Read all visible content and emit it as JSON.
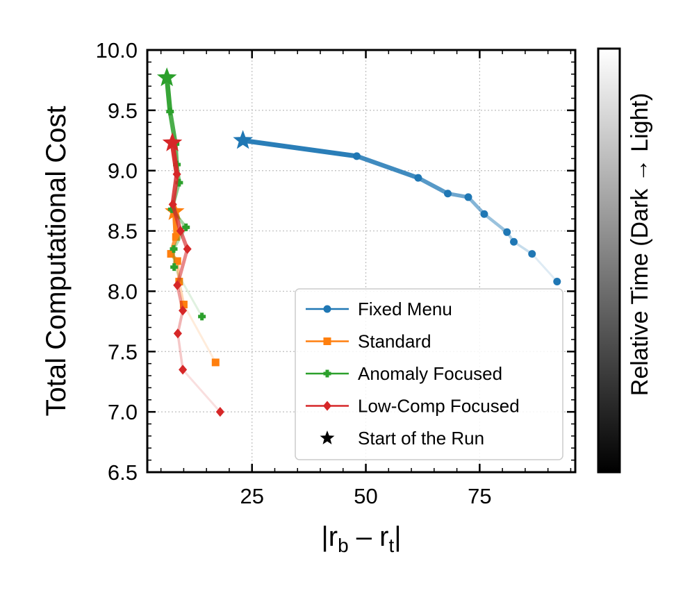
{
  "chart_data": {
    "type": "line",
    "xlabel": "|r_b – r_t|",
    "xlabel_parts": {
      "open": "|r",
      "sub1": "b",
      "mid": " – r",
      "sub2": "t",
      "close": "|"
    },
    "ylabel": "Total Computational Cost",
    "xlim": [
      2,
      96
    ],
    "ylim": [
      6.5,
      10.0
    ],
    "xticks": [
      25,
      50,
      75
    ],
    "yticks": [
      6.5,
      7.0,
      7.5,
      8.0,
      8.5,
      9.0,
      9.5,
      10.0
    ],
    "ytick_labels": [
      "6.5",
      "7.0",
      "7.5",
      "8.0",
      "8.5",
      "9.0",
      "9.5",
      "10.0"
    ],
    "grid": true,
    "legend_position": "lower-right",
    "colorbar_label": "Relative Time (Dark → Light)",
    "series": [
      {
        "name": "Fixed Menu",
        "color": "#1f77b4",
        "marker": "circle",
        "start": [
          23.0,
          9.25
        ],
        "points": [
          [
            48.0,
            9.12
          ],
          [
            61.5,
            8.94
          ],
          [
            68.0,
            8.81
          ],
          [
            72.5,
            8.78
          ],
          [
            76.0,
            8.64
          ],
          [
            81.0,
            8.49
          ],
          [
            82.5,
            8.41
          ],
          [
            86.5,
            8.31
          ],
          [
            92.0,
            8.08
          ]
        ]
      },
      {
        "name": "Standard",
        "color": "#ff7f0e",
        "marker": "square",
        "start": [
          8.0,
          8.66
        ],
        "points": [
          [
            8.3,
            8.45
          ],
          [
            7.2,
            8.31
          ],
          [
            8.6,
            8.25
          ],
          [
            9.0,
            8.08
          ],
          [
            10.0,
            7.89
          ],
          [
            17.0,
            7.41
          ]
        ]
      },
      {
        "name": "Anomaly Focused",
        "color": "#2ca02c",
        "marker": "plus",
        "start": [
          6.3,
          9.77
        ],
        "points": [
          [
            7.0,
            9.49
          ],
          [
            8.2,
            9.22
          ],
          [
            8.5,
            9.05
          ],
          [
            9.0,
            8.9
          ],
          [
            7.4,
            8.68
          ],
          [
            10.5,
            8.53
          ],
          [
            7.8,
            8.35
          ],
          [
            7.9,
            8.2
          ],
          [
            14.0,
            7.79
          ]
        ]
      },
      {
        "name": "Low-Comp Focused",
        "color": "#d62728",
        "marker": "diamond",
        "start": [
          7.5,
          9.23
        ],
        "points": [
          [
            8.5,
            8.97
          ],
          [
            7.6,
            8.72
          ],
          [
            9.3,
            8.5
          ],
          [
            10.8,
            8.35
          ],
          [
            8.6,
            8.05
          ],
          [
            9.8,
            7.84
          ],
          [
            8.7,
            7.65
          ],
          [
            9.8,
            7.35
          ],
          [
            18.0,
            7.0
          ]
        ]
      }
    ],
    "legend_entries": [
      "Fixed Menu",
      "Standard",
      "Anomaly Focused",
      "Low-Comp Focused",
      "Start of the Run"
    ],
    "start_marker_label": "Start of the Run"
  }
}
